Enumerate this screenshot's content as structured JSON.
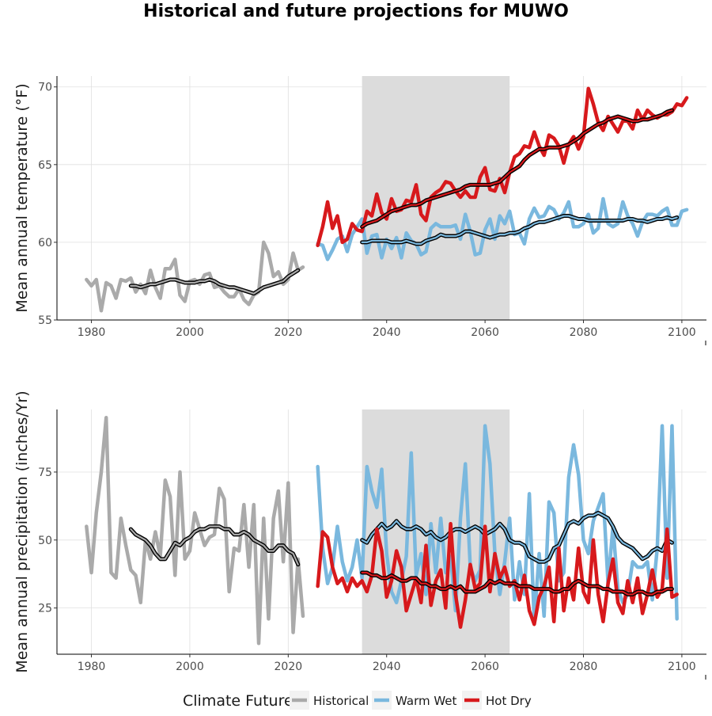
{
  "title": "Historical and future projections for MUWO",
  "colors": {
    "historical": "#aaaaaa",
    "warm_wet": "#7ab8de",
    "hot_dry": "#d7191c",
    "smooth": "#000000",
    "shade": "#dcdcdc",
    "axis": "#000000"
  },
  "legend": {
    "title": "Climate Future",
    "items": [
      {
        "key": "historical",
        "label": "Historical"
      },
      {
        "key": "warm_wet",
        "label": "Warm Wet"
      },
      {
        "key": "hot_dry",
        "label": "Hot Dry"
      }
    ]
  },
  "chart_data": [
    {
      "type": "line",
      "ylabel": "Mean annual temperature (°F)",
      "xlabel": "",
      "xlim": [
        1973,
        2105
      ],
      "ylim": [
        55,
        70.7
      ],
      "x_ticks": [
        1980,
        2000,
        2020,
        2040,
        2060,
        2080,
        2100
      ],
      "y_ticks": [
        55,
        60,
        65,
        70
      ],
      "shaded_period": [
        2035,
        2065
      ],
      "grid": true,
      "series": [
        {
          "key": "historical",
          "name": "Historical",
          "x_start": 1979,
          "values": [
            57.6,
            57.2,
            57.6,
            55.6,
            57.4,
            57.2,
            56.4,
            57.6,
            57.5,
            57.7,
            56.8,
            57.3,
            56.7,
            58.2,
            57.1,
            56.4,
            58.3,
            58.3,
            58.9,
            56.6,
            56.2,
            57.5,
            57.6,
            57.3,
            57.9,
            58.0,
            57.1,
            57.2,
            56.8,
            56.5,
            56.5,
            57.0,
            56.3,
            56.0,
            56.6,
            56.8,
            60.0,
            59.3,
            57.8,
            58.1,
            57.3,
            57.6,
            59.3,
            58.2,
            58.4
          ]
        },
        {
          "key": "historical_smooth",
          "name": "",
          "x_start": 1988,
          "smooth": true,
          "values": [
            57.2,
            57.2,
            57.1,
            57.2,
            57.3,
            57.3,
            57.4,
            57.5,
            57.6,
            57.6,
            57.5,
            57.4,
            57.4,
            57.4,
            57.5,
            57.5,
            57.6,
            57.5,
            57.3,
            57.2,
            57.1,
            57.1,
            57.0,
            56.9,
            56.8,
            56.7,
            56.9,
            57.1,
            57.2,
            57.3,
            57.4,
            57.5,
            57.8,
            58.0,
            58.2
          ]
        },
        {
          "key": "warm_wet",
          "name": "Warm Wet",
          "x_start": 2026,
          "values": [
            59.9,
            59.8,
            58.9,
            59.5,
            60.2,
            60.4,
            59.4,
            60.5,
            61.0,
            61.5,
            59.3,
            60.4,
            60.5,
            59.0,
            60.2,
            59.6,
            60.3,
            59.0,
            60.6,
            60.1,
            59.9,
            59.2,
            59.4,
            60.9,
            61.2,
            61.0,
            61.0,
            61.0,
            61.1,
            60.2,
            61.8,
            60.7,
            59.2,
            59.3,
            60.8,
            61.5,
            60.2,
            61.7,
            61.2,
            62.0,
            60.5,
            60.6,
            59.9,
            61.5,
            62.2,
            61.6,
            61.7,
            62.3,
            62.1,
            61.5,
            61.9,
            62.6,
            61.0,
            61.0,
            61.2,
            61.8,
            60.6,
            60.9,
            62.8,
            61.2,
            61.0,
            61.2,
            62.6,
            61.7,
            61.2,
            60.4,
            61.3,
            61.8,
            61.8,
            61.7,
            62.0,
            62.2,
            61.1,
            61.1,
            62.0,
            62.1
          ]
        },
        {
          "key": "warm_wet_smooth",
          "name": "",
          "x_start": 2035,
          "smooth": true,
          "values": [
            60.0,
            60.0,
            60.1,
            60.1,
            60.1,
            60.1,
            60.0,
            60.0,
            60.0,
            60.1,
            60.0,
            59.9,
            59.9,
            60.1,
            60.2,
            60.3,
            60.5,
            60.4,
            60.4,
            60.4,
            60.5,
            60.7,
            60.7,
            60.6,
            60.5,
            60.4,
            60.3,
            60.4,
            60.5,
            60.5,
            60.6,
            60.6,
            60.7,
            60.9,
            61.0,
            61.2,
            61.3,
            61.3,
            61.4,
            61.5,
            61.6,
            61.7,
            61.7,
            61.6,
            61.5,
            61.5,
            61.4,
            61.4,
            61.4,
            61.4,
            61.4,
            61.4,
            61.4,
            61.4,
            61.5,
            61.5,
            61.4,
            61.4,
            61.3,
            61.4,
            61.5,
            61.5,
            61.6,
            61.5,
            61.6
          ]
        },
        {
          "key": "hot_dry",
          "name": "Hot Dry",
          "x_start": 2026,
          "values": [
            59.8,
            61.0,
            62.6,
            60.9,
            61.7,
            60.0,
            60.2,
            61.2,
            60.8,
            60.7,
            62.0,
            61.7,
            63.1,
            61.9,
            61.5,
            62.8,
            62.0,
            62.1,
            62.7,
            62.6,
            63.7,
            61.8,
            61.4,
            62.9,
            63.2,
            63.4,
            63.9,
            63.8,
            63.3,
            62.9,
            63.3,
            62.9,
            62.9,
            64.2,
            64.8,
            63.4,
            63.3,
            64.1,
            63.2,
            64.5,
            65.5,
            65.7,
            66.2,
            66.1,
            67.1,
            66.2,
            65.6,
            66.9,
            66.7,
            66.2,
            65.1,
            66.3,
            66.8,
            66.0,
            66.8,
            69.9,
            68.9,
            67.7,
            67.2,
            68.1,
            67.6,
            67.1,
            67.8,
            67.8,
            67.3,
            68.5,
            67.9,
            68.5,
            68.2,
            68.0,
            68.2,
            68.2,
            68.4,
            68.9,
            68.8,
            69.3
          ]
        },
        {
          "key": "hot_dry_smooth",
          "name": "",
          "x_start": 2035,
          "smooth": true,
          "values": [
            61.0,
            61.2,
            61.3,
            61.4,
            61.6,
            61.8,
            62.0,
            62.1,
            62.2,
            62.3,
            62.4,
            62.4,
            62.5,
            62.7,
            62.8,
            62.9,
            63.0,
            63.1,
            63.2,
            63.3,
            63.4,
            63.6,
            63.7,
            63.7,
            63.7,
            63.7,
            63.7,
            63.8,
            63.9,
            64.2,
            64.5,
            64.7,
            64.9,
            65.3,
            65.6,
            65.8,
            66.0,
            66.0,
            66.1,
            66.1,
            66.1,
            66.2,
            66.3,
            66.5,
            66.7,
            67.0,
            67.2,
            67.4,
            67.6,
            67.7,
            67.9,
            68.0,
            68.1,
            68.0,
            67.9,
            67.8,
            67.8,
            67.9,
            67.9,
            68.0,
            68.1,
            68.2,
            68.4,
            68.5
          ]
        }
      ]
    },
    {
      "type": "line",
      "ylabel": "Mean annual precipitation (inches/Yr)",
      "xlabel": "",
      "xlim": [
        1973,
        2105
      ],
      "ylim": [
        8,
        98
      ],
      "x_ticks": [
        1980,
        2000,
        2020,
        2040,
        2060,
        2080,
        2100
      ],
      "y_ticks": [
        25,
        50,
        75
      ],
      "shaded_period": [
        2035,
        2065
      ],
      "grid": true,
      "series": [
        {
          "key": "historical",
          "name": "Historical",
          "x_start": 1979,
          "values": [
            55,
            38,
            60,
            75,
            95,
            38,
            36,
            58,
            48,
            39,
            37,
            27,
            50,
            43,
            53,
            44,
            72,
            66,
            37,
            75,
            43,
            46,
            60,
            54,
            48,
            51,
            52,
            69,
            65,
            31,
            47,
            46,
            63,
            40,
            63,
            12,
            58,
            21,
            58,
            68,
            42,
            71,
            16,
            43,
            22
          ]
        },
        {
          "key": "historical_smooth",
          "name": "",
          "x_start": 1988,
          "smooth": true,
          "values": [
            54,
            52,
            51,
            50,
            48,
            45,
            43,
            43,
            46,
            49,
            48,
            50,
            51,
            53,
            54,
            54,
            55,
            55,
            55,
            54,
            54,
            52,
            52,
            53,
            52,
            50,
            49,
            48,
            46,
            46,
            48,
            48,
            46,
            45,
            41
          ]
        },
        {
          "key": "warm_wet",
          "name": "Warm Wet",
          "x_start": 2026,
          "values": [
            77,
            47,
            34,
            40,
            55,
            42,
            35,
            40,
            50,
            36,
            77,
            68,
            62,
            76,
            45,
            31,
            27,
            35,
            44,
            82,
            37,
            45,
            30,
            56,
            38,
            58,
            38,
            44,
            24,
            58,
            78,
            40,
            35,
            39,
            92,
            78,
            45,
            30,
            42,
            58,
            28,
            42,
            30,
            67,
            20,
            45,
            22,
            64,
            60,
            35,
            38,
            73,
            85,
            74,
            50,
            45,
            57,
            62,
            67,
            34,
            55,
            32,
            27,
            30,
            42,
            40,
            40,
            42,
            28,
            47,
            92,
            36,
            92,
            21
          ]
        },
        {
          "key": "warm_wet_smooth",
          "name": "",
          "x_start": 2035,
          "smooth": true,
          "values": [
            50,
            49,
            52,
            54,
            56,
            54,
            55,
            57,
            55,
            54,
            54,
            55,
            54,
            52,
            53,
            51,
            50,
            51,
            53,
            54,
            54,
            53,
            54,
            55,
            54,
            52,
            53,
            54,
            56,
            54,
            50,
            49,
            49,
            48,
            44,
            43,
            42,
            42,
            43,
            47,
            48,
            52,
            56,
            57,
            56,
            58,
            59,
            59,
            60,
            59,
            58,
            55,
            51,
            49,
            48,
            47,
            45,
            43,
            44,
            46,
            47,
            46,
            50,
            49
          ]
        },
        {
          "key": "hot_dry",
          "name": "Hot Dry",
          "x_start": 2026,
          "values": [
            33,
            53,
            51,
            40,
            34,
            36,
            31,
            36,
            33,
            35,
            31,
            37,
            54,
            46,
            29,
            35,
            46,
            40,
            24,
            30,
            36,
            27,
            48,
            26,
            35,
            39,
            25,
            56,
            30,
            18,
            28,
            41,
            32,
            34,
            55,
            31,
            45,
            36,
            40,
            33,
            35,
            28,
            37,
            24,
            19,
            29,
            33,
            40,
            20,
            47,
            24,
            36,
            28,
            47,
            31,
            27,
            50,
            30,
            20,
            34,
            43,
            27,
            23,
            35,
            27,
            36,
            23,
            30,
            39,
            29,
            32,
            54,
            29,
            30
          ]
        },
        {
          "key": "hot_dry_smooth",
          "name": "",
          "x_start": 2035,
          "smooth": true,
          "values": [
            38,
            38,
            37,
            37,
            36,
            36,
            37,
            36,
            35,
            35,
            36,
            36,
            34,
            34,
            33,
            33,
            32,
            32,
            33,
            32,
            33,
            31,
            31,
            31,
            32,
            33,
            35,
            34,
            35,
            34,
            34,
            34,
            33,
            33,
            33,
            32,
            32,
            32,
            32,
            31,
            31,
            32,
            32,
            34,
            35,
            34,
            33,
            33,
            33,
            32,
            32,
            31,
            31,
            31,
            30,
            30,
            31,
            31,
            30,
            30,
            31,
            31,
            32,
            32
          ]
        }
      ]
    }
  ]
}
